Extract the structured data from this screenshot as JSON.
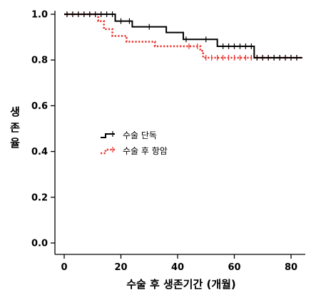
{
  "chart_data": {
    "type": "line",
    "xlabel": "수술 후 생존기간 (개월)",
    "ylabel": "생존율",
    "xlim": [
      0,
      84
    ],
    "ylim": [
      0,
      1.05
    ],
    "x_ticks": [
      0,
      20,
      40,
      60,
      80
    ],
    "y_ticks": [
      0.0,
      0.2,
      0.4,
      0.6,
      0.8,
      1.0
    ],
    "y_tick_labels": [
      "0.0",
      "0.2",
      "0.4",
      "0.6",
      "0.8",
      "1.0"
    ],
    "grid": false,
    "legend_position": "center-left",
    "series": [
      {
        "name": "수술 단독",
        "color": "#000000",
        "style": "solid",
        "steps": [
          [
            0,
            1.0
          ],
          [
            18,
            0.97
          ],
          [
            24,
            0.945
          ],
          [
            36,
            0.92
          ],
          [
            42,
            0.89
          ],
          [
            54,
            0.86
          ],
          [
            67,
            0.81
          ],
          [
            84,
            0.81
          ]
        ],
        "censor_x": [
          1,
          3,
          5,
          7,
          9,
          11,
          13,
          15,
          17,
          20,
          23,
          30,
          43,
          50,
          56,
          58,
          60,
          62,
          64,
          66,
          68,
          70,
          72,
          74,
          76,
          78,
          80,
          82
        ]
      },
      {
        "name": "수술 후 항암",
        "color": "#e8322c",
        "style": "dotted",
        "steps": [
          [
            0,
            1.0
          ],
          [
            12,
            0.97
          ],
          [
            14,
            0.935
          ],
          [
            17,
            0.905
          ],
          [
            22,
            0.88
          ],
          [
            32,
            0.86
          ],
          [
            48,
            0.84
          ],
          [
            49,
            0.81
          ],
          [
            84,
            0.81
          ]
        ],
        "censor_x": [
          1,
          3,
          5,
          7,
          9,
          44,
          47,
          50,
          52,
          54,
          56,
          58,
          60,
          62,
          64,
          66,
          68,
          70,
          72,
          74,
          76,
          78,
          80,
          82
        ]
      }
    ]
  }
}
